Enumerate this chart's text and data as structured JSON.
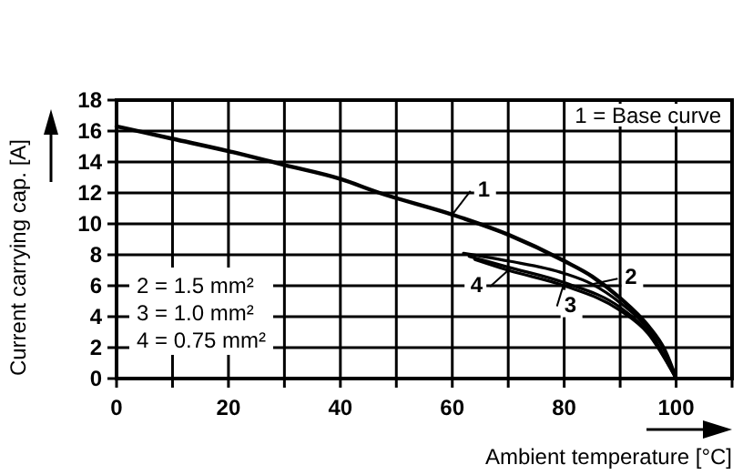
{
  "chart_data": {
    "type": "line",
    "xlabel": "Ambient temperature [°C]",
    "ylabel": "Current carrying cap. [A]",
    "xlim": [
      0,
      110
    ],
    "ylim": [
      0,
      18
    ],
    "xticks": [
      0,
      {
        "value": 10,
        "label": null
      },
      20,
      {
        "value": 30,
        "label": null
      },
      40,
      {
        "value": 50,
        "label": null
      },
      60,
      {
        "value": 70,
        "label": null
      },
      80,
      {
        "value": 90,
        "label": null
      },
      100,
      {
        "value": 110,
        "label": null
      }
    ],
    "yticks": [
      0,
      2,
      4,
      6,
      8,
      10,
      12,
      14,
      16,
      18
    ],
    "grid": true,
    "marker": "none",
    "line_style": "solid",
    "annotations": [
      "1 = Base curve",
      "2 = 1.5 mm²",
      "3 = 1.0 mm²",
      "4 = 0.75 mm²",
      {
        "text": "1",
        "x": 60,
        "y": 10.6
      },
      {
        "text": "2",
        "x": 85,
        "y": 6.1
      },
      {
        "text": "3",
        "x": 80,
        "y": 6.2
      },
      {
        "text": "4",
        "x": 70,
        "y": 7
      }
    ],
    "series": [
      {
        "color": "#000000",
        "x": [
          0,
          10,
          20,
          30,
          40,
          47,
          60,
          70,
          80,
          85,
          90,
          95,
          98,
          100
        ],
        "values": [
          16.3,
          15.5,
          14.7,
          13.8,
          12.9,
          12,
          10.6,
          9.3,
          7.6,
          6.6,
          5.2,
          3.4,
          1.8,
          0
        ]
      },
      {
        "color": "#000000",
        "x": [
          62,
          70,
          80,
          85,
          90,
          95,
          100
        ],
        "values": [
          8.1,
          7.6,
          6.8,
          6.1,
          4.9,
          3.2,
          0
        ]
      },
      {
        "color": "#000000",
        "x": [
          63,
          70,
          80,
          90,
          95,
          100
        ],
        "values": [
          7.9,
          7.2,
          6.2,
          4.6,
          3,
          0
        ]
      },
      {
        "color": "#000000",
        "x": [
          64,
          70,
          80,
          90,
          95,
          100
        ],
        "values": [
          7.7,
          7,
          6,
          4.4,
          2.9,
          0
        ]
      }
    ]
  }
}
